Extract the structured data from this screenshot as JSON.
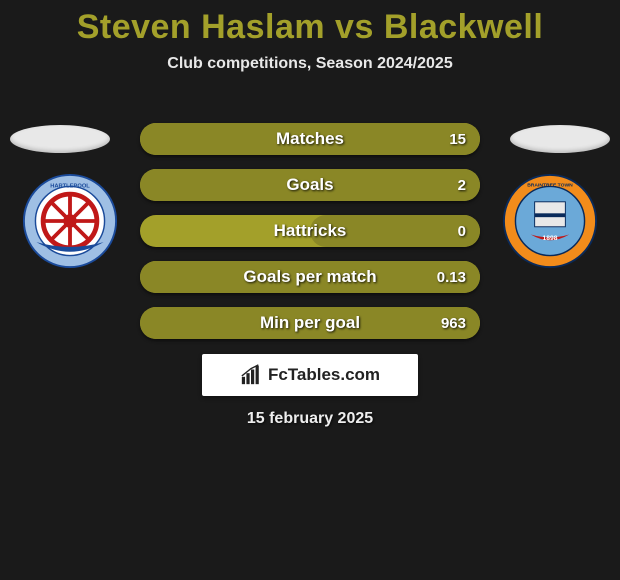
{
  "header": {
    "player1": "Steven Haslam",
    "vs": "vs",
    "player2": "Blackwell",
    "title_color": "#a3a02a",
    "title_fontsize": 34,
    "subtitle": "Club competitions, Season 2024/2025",
    "subtitle_fontsize": 16
  },
  "ovals": {
    "color": "#e8e8e8"
  },
  "crests": {
    "left": {
      "name": "hartlepool-united",
      "outer_ring": "#9fbfe4",
      "inner_bg": "#ffffff",
      "wheel": "#c01818",
      "ribbon": "#1a4a9a"
    },
    "right": {
      "name": "braintree-town",
      "outer_ring": "#f28c1b",
      "inner_bg": "#6ba9d8",
      "outline": "#0a2a5a",
      "year": "1898"
    }
  },
  "bars": {
    "base_color": "#a3a02a",
    "fill_color": "#8a8726",
    "label_fontsize": 17,
    "value_fontsize": 15,
    "items": [
      {
        "label": "Matches",
        "left": "",
        "right": "15",
        "right_fill_pct": 100
      },
      {
        "label": "Goals",
        "left": "",
        "right": "2",
        "right_fill_pct": 100
      },
      {
        "label": "Hattricks",
        "left": "",
        "right": "0",
        "right_fill_pct": 50
      },
      {
        "label": "Goals per match",
        "left": "",
        "right": "0.13",
        "right_fill_pct": 100
      },
      {
        "label": "Min per goal",
        "left": "",
        "right": "963",
        "right_fill_pct": 100
      }
    ]
  },
  "brand": {
    "text": "FcTables.com",
    "icon_color": "#222222",
    "box_bg": "#ffffff"
  },
  "footer": {
    "date": "15 february 2025"
  },
  "background_color": "#1a1a1a"
}
